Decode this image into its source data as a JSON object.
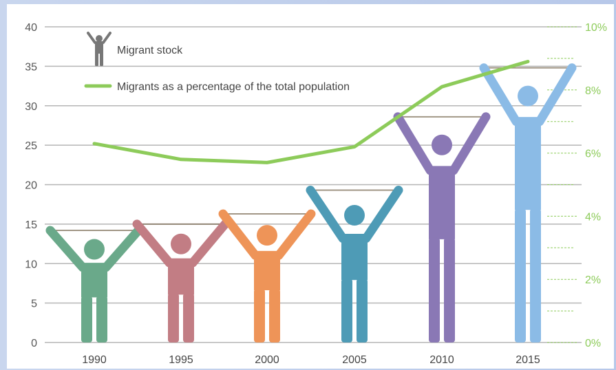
{
  "chart_data": {
    "type": "bar",
    "categories": [
      "1990",
      "1995",
      "2000",
      "2005",
      "2010",
      "2015"
    ],
    "series": [
      {
        "name": "Migrant stock",
        "axis": "left",
        "values": [
          14.2,
          15.0,
          16.3,
          19.3,
          28.6,
          34.8
        ],
        "colors": [
          "#6aa98a",
          "#c27d84",
          "#ee9458",
          "#4e9bb6",
          "#8a78b5",
          "#8bbbe6"
        ]
      },
      {
        "name": "Migrants as a percentage of the total population",
        "axis": "right",
        "type": "line",
        "color": "#8dcb5a",
        "values": [
          6.3,
          5.8,
          5.7,
          6.2,
          8.1,
          8.9
        ]
      }
    ],
    "y_left": {
      "ticks": [
        0,
        5,
        10,
        15,
        20,
        25,
        30,
        35,
        40
      ],
      "ylim": [
        0,
        40
      ]
    },
    "y_right": {
      "ticks": [
        "0%",
        "2%",
        "4%",
        "6%",
        "8%",
        "10%"
      ],
      "ylim": [
        0,
        10
      ]
    },
    "grid": true,
    "legend_position": "top-left"
  }
}
